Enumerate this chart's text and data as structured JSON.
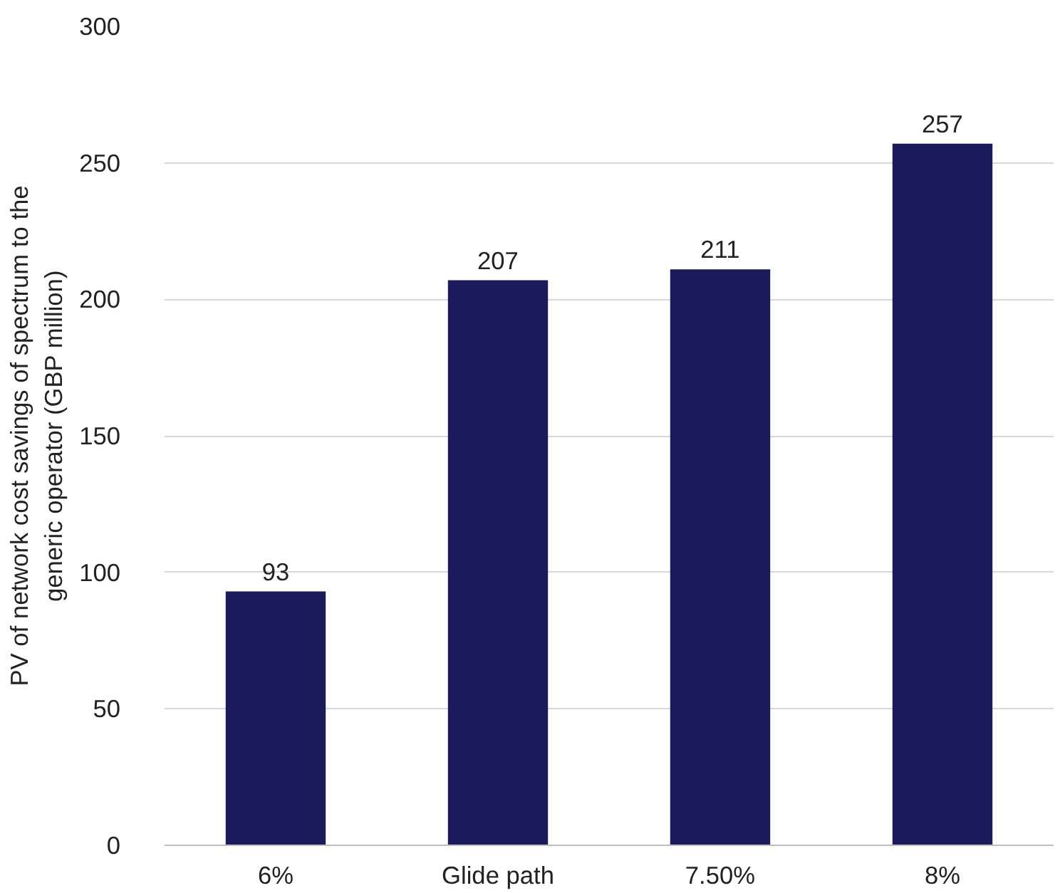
{
  "chart_data": {
    "type": "bar",
    "ylabel": "PV of network cost savings of spectrum to the\ngeneric operator (GBP million)",
    "categories": [
      "6%",
      "Glide path",
      "7.50%",
      "8%"
    ],
    "values": [
      93,
      207,
      211,
      257
    ],
    "color": "#1b1a5a",
    "ylim": [
      0,
      300
    ],
    "yticks": [
      0,
      50,
      100,
      150,
      200,
      250,
      300
    ],
    "grid": "y",
    "data_labels": true
  }
}
